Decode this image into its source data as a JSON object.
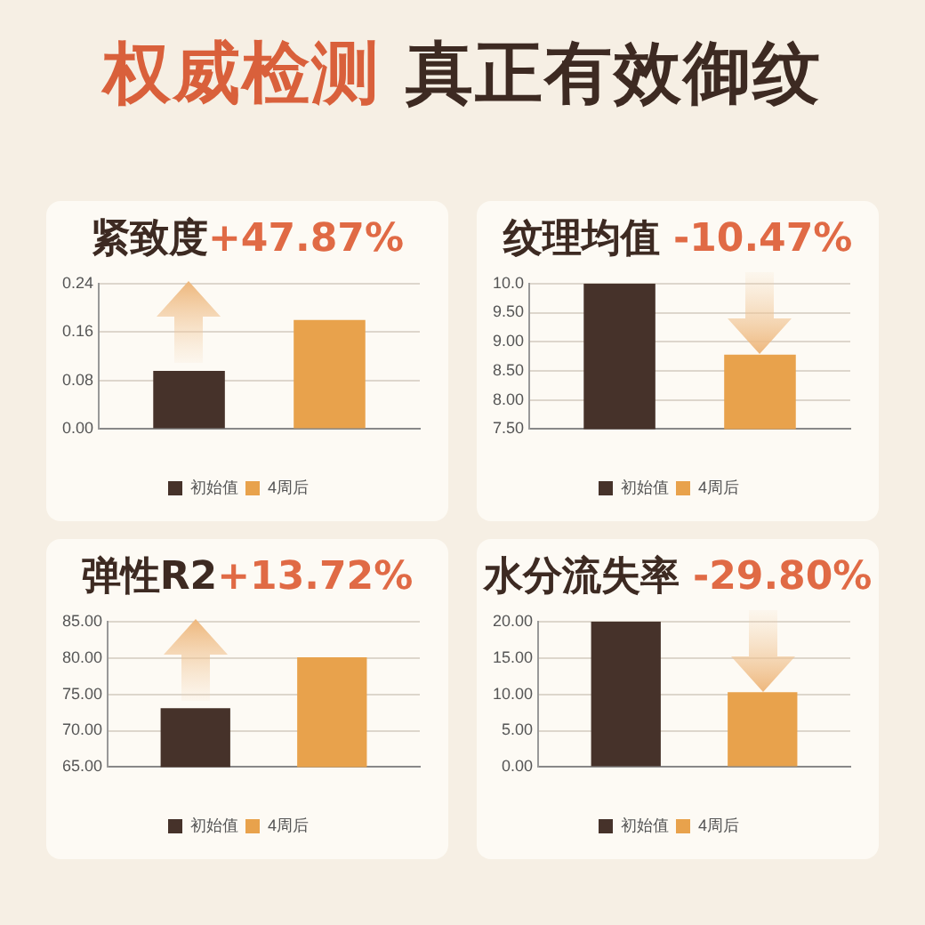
{
  "chart_data": [
    {
      "type": "bar",
      "title": "紧致度+47.87%",
      "annotations": [
        "权威检测 真正有效御纹"
      ],
      "categories": [
        null
      ],
      "series": [
        {
          "name": "初始值",
          "color": "#46322a",
          "values": [
            0.096
          ]
        },
        {
          "name": "4周后",
          "color": "#e8a24c",
          "values": [
            0.18
          ]
        }
      ],
      "ylim": [
        0,
        0.24
      ],
      "yticks": [
        {
          "value": 0,
          "label": "0.00"
        },
        {
          "value": 0.08,
          "label": "0.08"
        },
        {
          "value": 0.16,
          "label": "0.16"
        },
        {
          "value": 0.24,
          "label": "0.24"
        }
      ],
      "grid": "y",
      "legend": "bottom"
    },
    {
      "type": "bar",
      "title": "纹理均值 -10.47%",
      "categories": [
        null
      ],
      "series": [
        {
          "name": "初始值",
          "color": "#46322a",
          "values": [
            10
          ]
        },
        {
          "name": "4周后",
          "color": "#e8a24c",
          "values": [
            8.78
          ]
        }
      ],
      "ylim": [
        7.5,
        10
      ],
      "yticks": [
        {
          "value": 7.5,
          "label": "7.50"
        },
        {
          "value": 8,
          "label": "8.00"
        },
        {
          "value": 8.5,
          "label": "8.50"
        },
        {
          "value": 9,
          "label": "9.00"
        },
        {
          "value": 9.5,
          "label": "9.50"
        },
        {
          "value": 10,
          "label": "10.0"
        }
      ],
      "grid": "y",
      "legend": "bottom"
    },
    {
      "type": "bar",
      "title": "弹性R2+13.72%",
      "categories": [
        null
      ],
      "series": [
        {
          "name": "初始值",
          "color": "#46322a",
          "values": [
            73.1
          ]
        },
        {
          "name": "4周后",
          "color": "#e8a24c",
          "values": [
            80.1
          ]
        }
      ],
      "ylim": [
        65,
        85
      ],
      "yticks": [
        {
          "value": 65,
          "label": "65.00"
        },
        {
          "value": 70,
          "label": "70.00"
        },
        {
          "value": 75,
          "label": "75.00"
        },
        {
          "value": 80,
          "label": "80.00"
        },
        {
          "value": 85,
          "label": "85.00"
        }
      ],
      "grid": "y",
      "legend": "bottom"
    },
    {
      "type": "bar",
      "title": "水分流失率 -29.80%",
      "categories": [
        null
      ],
      "series": [
        {
          "name": "初始值",
          "color": "#46322a",
          "values": [
            20
          ]
        },
        {
          "name": "4周后",
          "color": "#e8a24c",
          "values": [
            10.3
          ]
        }
      ],
      "ylim": [
        0,
        20
      ],
      "yticks": [
        {
          "value": 0,
          "label": "0.00"
        },
        {
          "value": 5,
          "label": "5.00"
        },
        {
          "value": 10,
          "label": "10.00"
        },
        {
          "value": 15,
          "label": "15.00"
        },
        {
          "value": 20,
          "label": "20.00"
        }
      ],
      "grid": "y",
      "legend": "bottom"
    }
  ]
}
